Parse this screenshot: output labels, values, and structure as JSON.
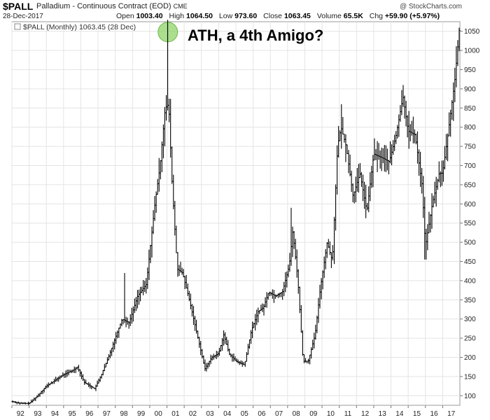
{
  "header": {
    "symbol": "$PALL",
    "description": "Palladium - Continuous Contract (EOD)",
    "exchange": "CME",
    "watermark": "@ StockCharts.com",
    "date": "28-Dec-2017",
    "open_label": "Open",
    "open": "1003.40",
    "high_label": "High",
    "high": "1064.50",
    "low_label": "Low",
    "low": "973.60",
    "close_label": "Close",
    "close": "1063.45",
    "volume_label": "Volume",
    "volume": "65.5K",
    "chg_label": "Chg",
    "chg": "+59.90 (+5.97%)"
  },
  "colors": {
    "bars": "#000000",
    "grid": "#e4e4e4",
    "highlight": "#8fd36a"
  },
  "chart_data": {
    "type": "line",
    "style": "ohlc-bars",
    "legend": "$PALL (Monthly) 1063.45 (28 Dec)",
    "annotation": "ATH, a 4th Amigo?",
    "ylim": [
      75,
      1075
    ],
    "y_ticks": [
      100,
      150,
      200,
      250,
      300,
      350,
      400,
      450,
      500,
      550,
      600,
      650,
      700,
      750,
      800,
      850,
      900,
      950,
      1000,
      1050
    ],
    "x_ticks": [
      "92",
      "93",
      "94",
      "95",
      "96",
      "97",
      "98",
      "99",
      "00",
      "01",
      "02",
      "03",
      "04",
      "05",
      "06",
      "07",
      "08",
      "09",
      "10",
      "11",
      "12",
      "13",
      "14",
      "15",
      "16",
      "17"
    ],
    "grid": false,
    "x_range": [
      1992.0,
      2018.0
    ],
    "anchors": [
      [
        1992.0,
        85
      ],
      [
        1992.5,
        80
      ],
      [
        1993.0,
        80
      ],
      [
        1993.5,
        100
      ],
      [
        1994.0,
        125
      ],
      [
        1994.5,
        140
      ],
      [
        1995.0,
        155
      ],
      [
        1995.5,
        165
      ],
      [
        1995.8,
        175
      ],
      [
        1996.2,
        135
      ],
      [
        1996.8,
        118
      ],
      [
        1997.2,
        155
      ],
      [
        1997.6,
        200
      ],
      [
        1998.0,
        250
      ],
      [
        1998.4,
        300
      ],
      [
        1998.8,
        290
      ],
      [
        1999.3,
        360
      ],
      [
        1999.8,
        390
      ],
      [
        2000.3,
        600
      ],
      [
        2000.6,
        700
      ],
      [
        2000.9,
        850
      ],
      [
        2001.1,
        860
      ],
      [
        2001.3,
        650
      ],
      [
        2001.6,
        430
      ],
      [
        2001.9,
        420
      ],
      [
        2002.3,
        350
      ],
      [
        2002.8,
        250
      ],
      [
        2003.2,
        170
      ],
      [
        2003.6,
        200
      ],
      [
        2004.0,
        210
      ],
      [
        2004.3,
        260
      ],
      [
        2004.6,
        210
      ],
      [
        2005.0,
        190
      ],
      [
        2005.5,
        180
      ],
      [
        2005.9,
        270
      ],
      [
        2006.3,
        320
      ],
      [
        2006.6,
        330
      ],
      [
        2006.9,
        370
      ],
      [
        2007.3,
        360
      ],
      [
        2007.7,
        370
      ],
      [
        2008.1,
        440
      ],
      [
        2008.3,
        530
      ],
      [
        2008.6,
        400
      ],
      [
        2008.9,
        190
      ],
      [
        2009.2,
        190
      ],
      [
        2009.6,
        260
      ],
      [
        2009.9,
        380
      ],
      [
        2010.3,
        500
      ],
      [
        2010.6,
        450
      ],
      [
        2010.9,
        750
      ],
      [
        2011.1,
        800
      ],
      [
        2011.4,
        750
      ],
      [
        2011.8,
        620
      ],
      [
        2012.2,
        680
      ],
      [
        2012.6,
        580
      ],
      [
        2013.0,
        730
      ],
      [
        2013.5,
        720
      ],
      [
        2013.9,
        710
      ],
      [
        2014.3,
        780
      ],
      [
        2014.7,
        880
      ],
      [
        2015.0,
        790
      ],
      [
        2015.4,
        780
      ],
      [
        2015.8,
        650
      ],
      [
        2016.0,
        490
      ],
      [
        2016.4,
        600
      ],
      [
        2016.8,
        680
      ],
      [
        2017.0,
        680
      ],
      [
        2017.3,
        780
      ],
      [
        2017.7,
        920
      ],
      [
        2017.98,
        1063
      ]
    ],
    "spikes": [
      [
        2000.95,
        860
      ],
      [
        2001.05,
        1080
      ],
      [
        1998.55,
        420
      ],
      [
        2008.2,
        590
      ],
      [
        2014.7,
        910
      ],
      [
        2011.1,
        860
      ],
      [
        2016.0,
        455
      ]
    ]
  }
}
